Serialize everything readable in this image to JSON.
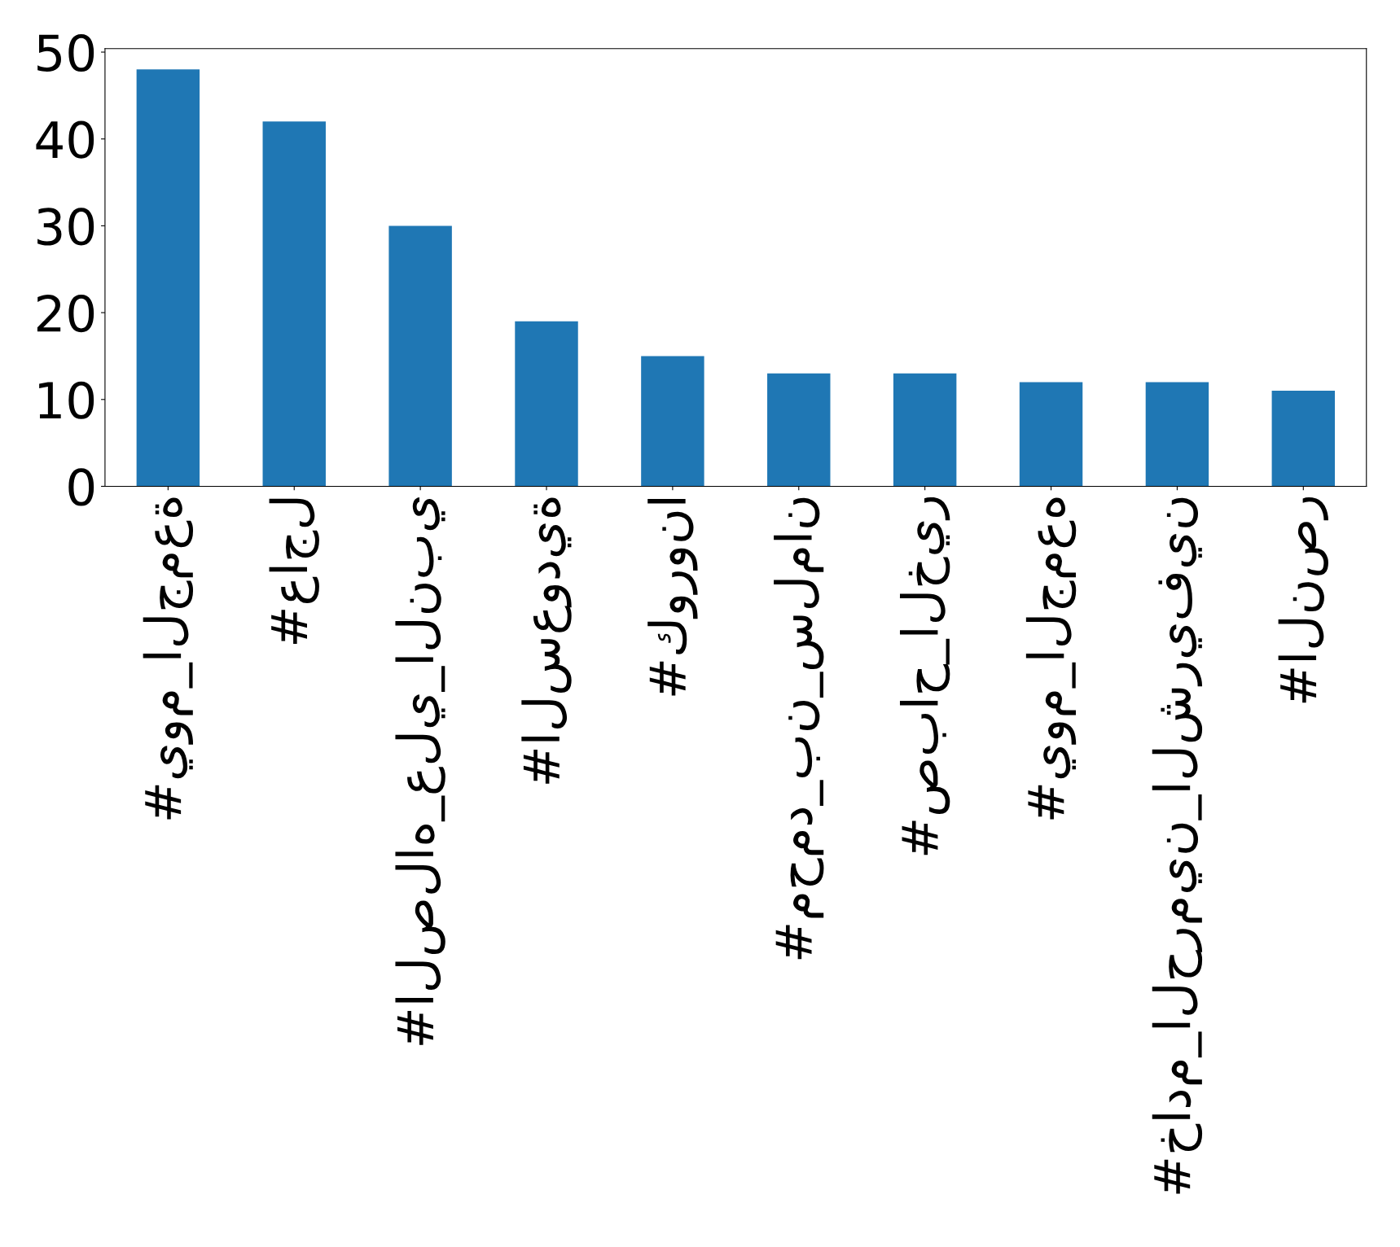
{
  "chart_data": {
    "type": "bar",
    "categories": [
      "#يوم_الجمعة",
      "#عاجل",
      "#الصلاه_علي_النبي",
      "#السعودية",
      "#كورونا",
      "#محمد_بن_سلمان",
      "#صباح_الخير",
      "#يوم_الجمعه",
      "#خادم_الحرمين_الشريفين",
      "#النصر"
    ],
    "values": [
      48,
      42,
      30,
      19,
      15,
      13,
      13,
      12,
      12,
      11
    ],
    "color": "#1f77b4",
    "ylim": [
      0,
      50.4
    ],
    "yticks": [
      0,
      10,
      20,
      30,
      40,
      50
    ],
    "grid": false,
    "legend": false
  }
}
